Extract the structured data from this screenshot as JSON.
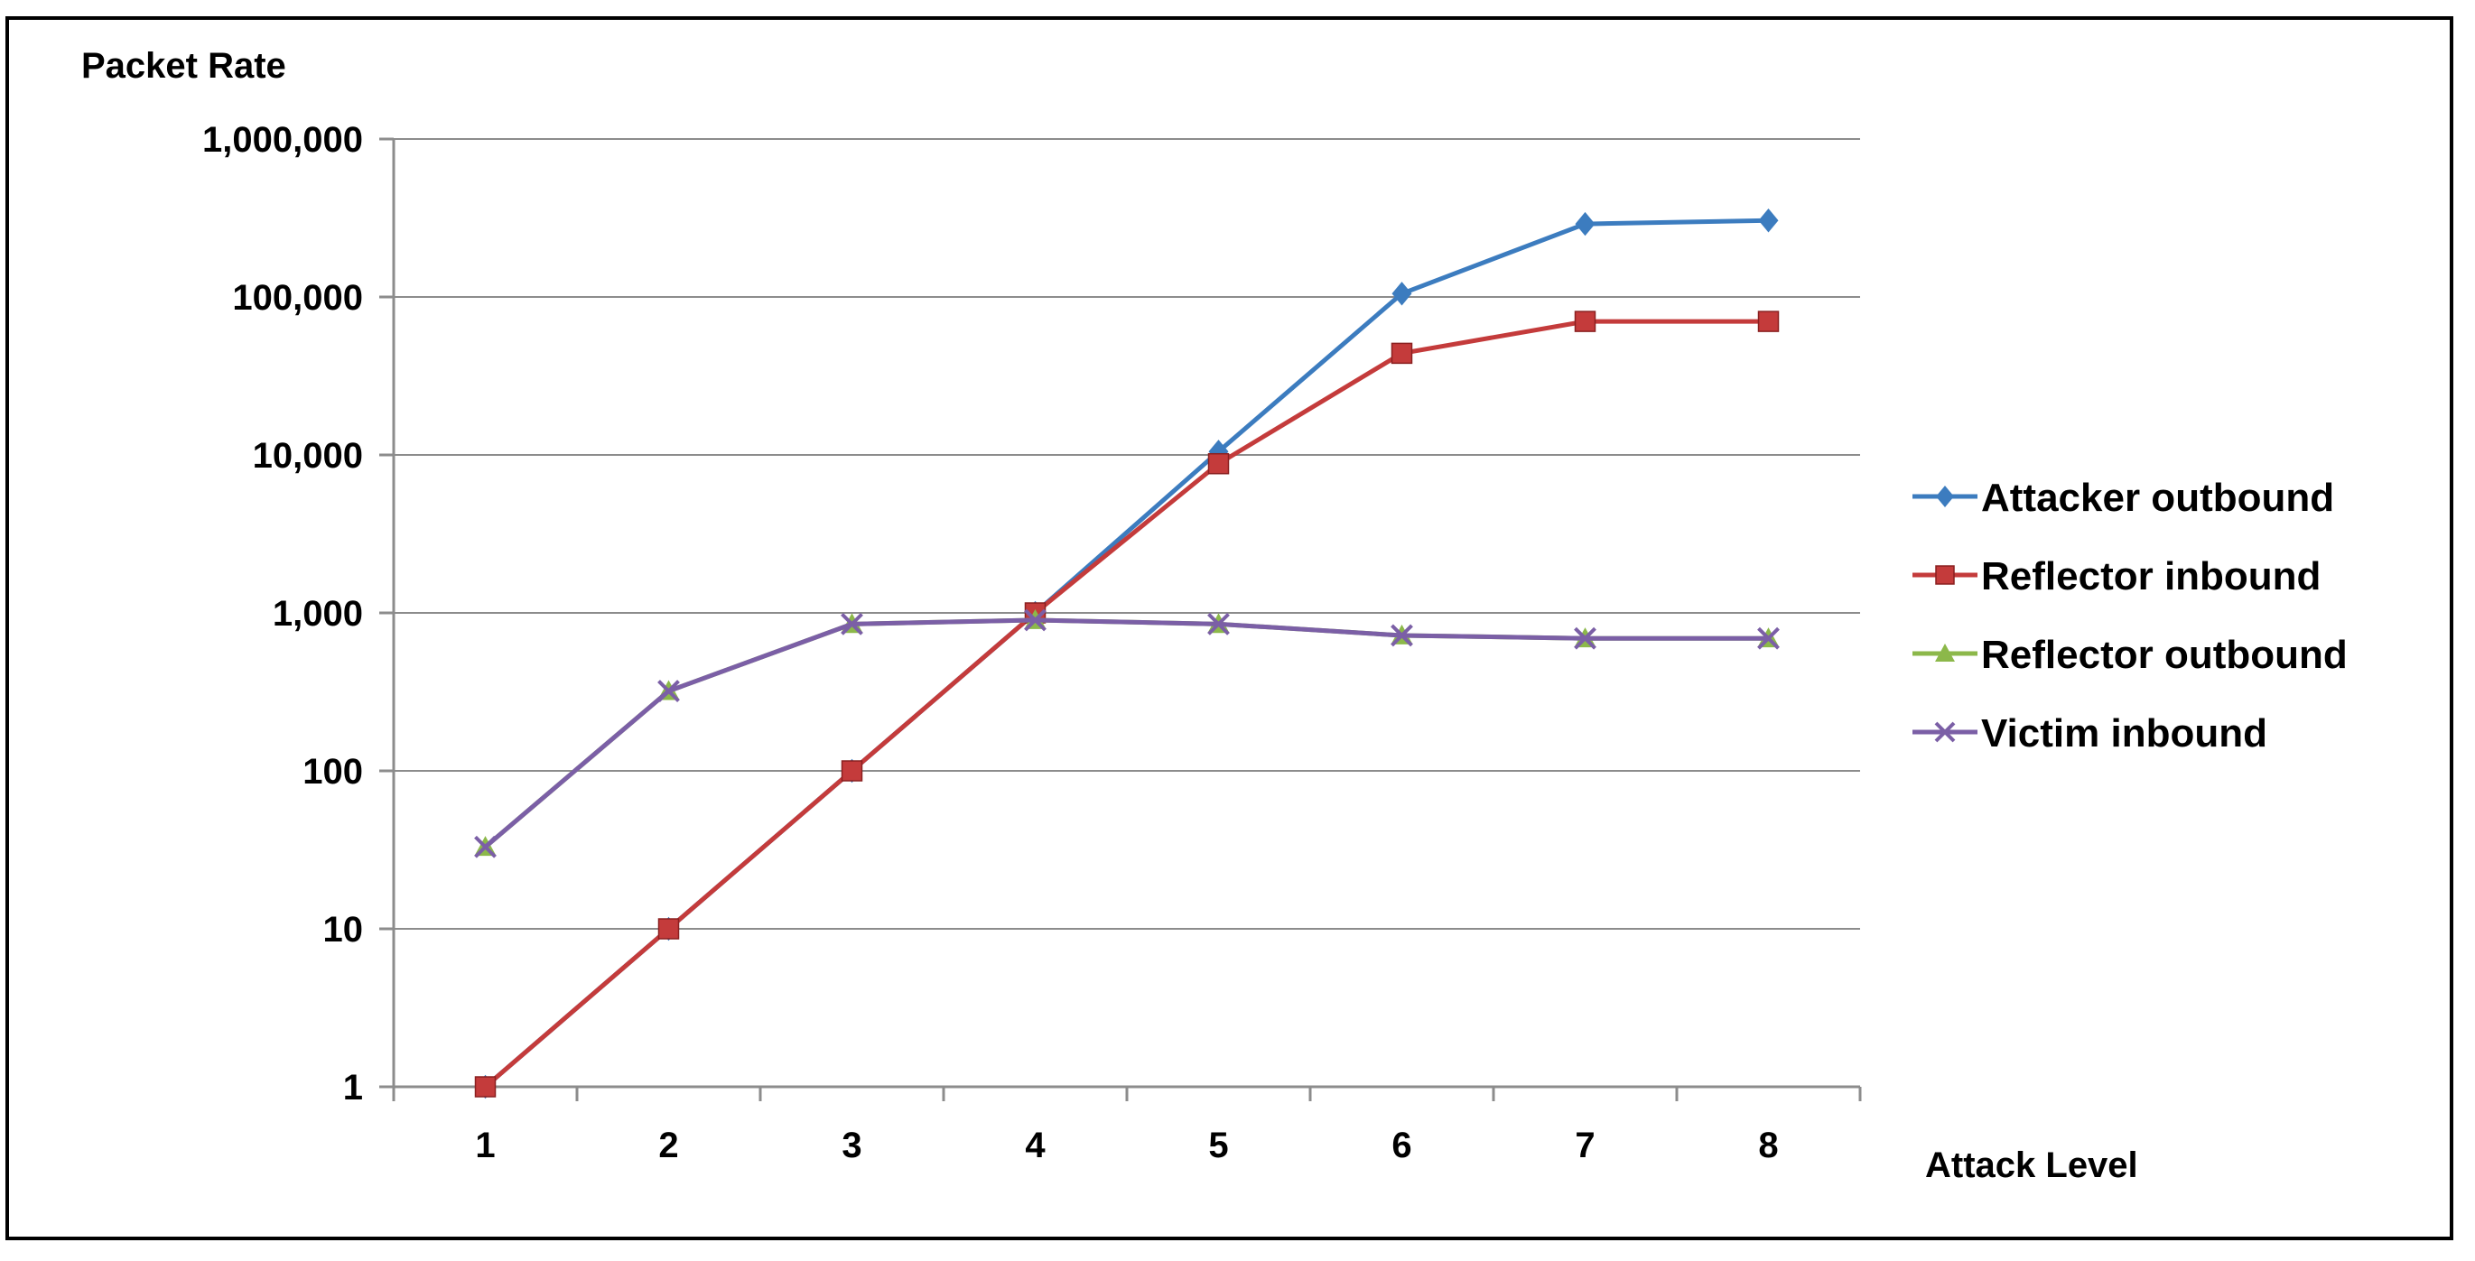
{
  "chart_data": {
    "type": "line",
    "xlabel": "Attack Level",
    "ylabel": "Packet Rate",
    "x": [
      1,
      2,
      3,
      4,
      5,
      6,
      7,
      8
    ],
    "y_scale": "log",
    "ylim": [
      1,
      1000000
    ],
    "y_ticks": [
      {
        "value": 1,
        "label": "1"
      },
      {
        "value": 10,
        "label": "10"
      },
      {
        "value": 100,
        "label": "100"
      },
      {
        "value": 1000,
        "label": "1,000"
      },
      {
        "value": 10000,
        "label": "10,000"
      },
      {
        "value": 100000,
        "label": "100,000"
      },
      {
        "value": 1000000,
        "label": "1,000,000"
      }
    ],
    "grid": "horizontal",
    "legend_position": "right",
    "series": [
      {
        "name": "Attacker outbound",
        "color": "#3c7cbf",
        "marker": "diamond",
        "values": [
          1,
          10,
          100,
          1000,
          10500,
          105000,
          290000,
          305000
        ]
      },
      {
        "name": "Reflector inbound",
        "color": "#c43b3b",
        "marker": "square",
        "values": [
          1,
          10,
          100,
          1000,
          8800,
          44000,
          70000,
          70000
        ]
      },
      {
        "name": "Reflector outbound",
        "color": "#8cb84a",
        "marker": "triangle",
        "values": [
          33,
          320,
          850,
          900,
          850,
          720,
          690,
          690
        ]
      },
      {
        "name": "Victim inbound",
        "color": "#7b5fa6",
        "marker": "x",
        "values": [
          33,
          320,
          850,
          900,
          850,
          720,
          690,
          690
        ]
      }
    ]
  }
}
